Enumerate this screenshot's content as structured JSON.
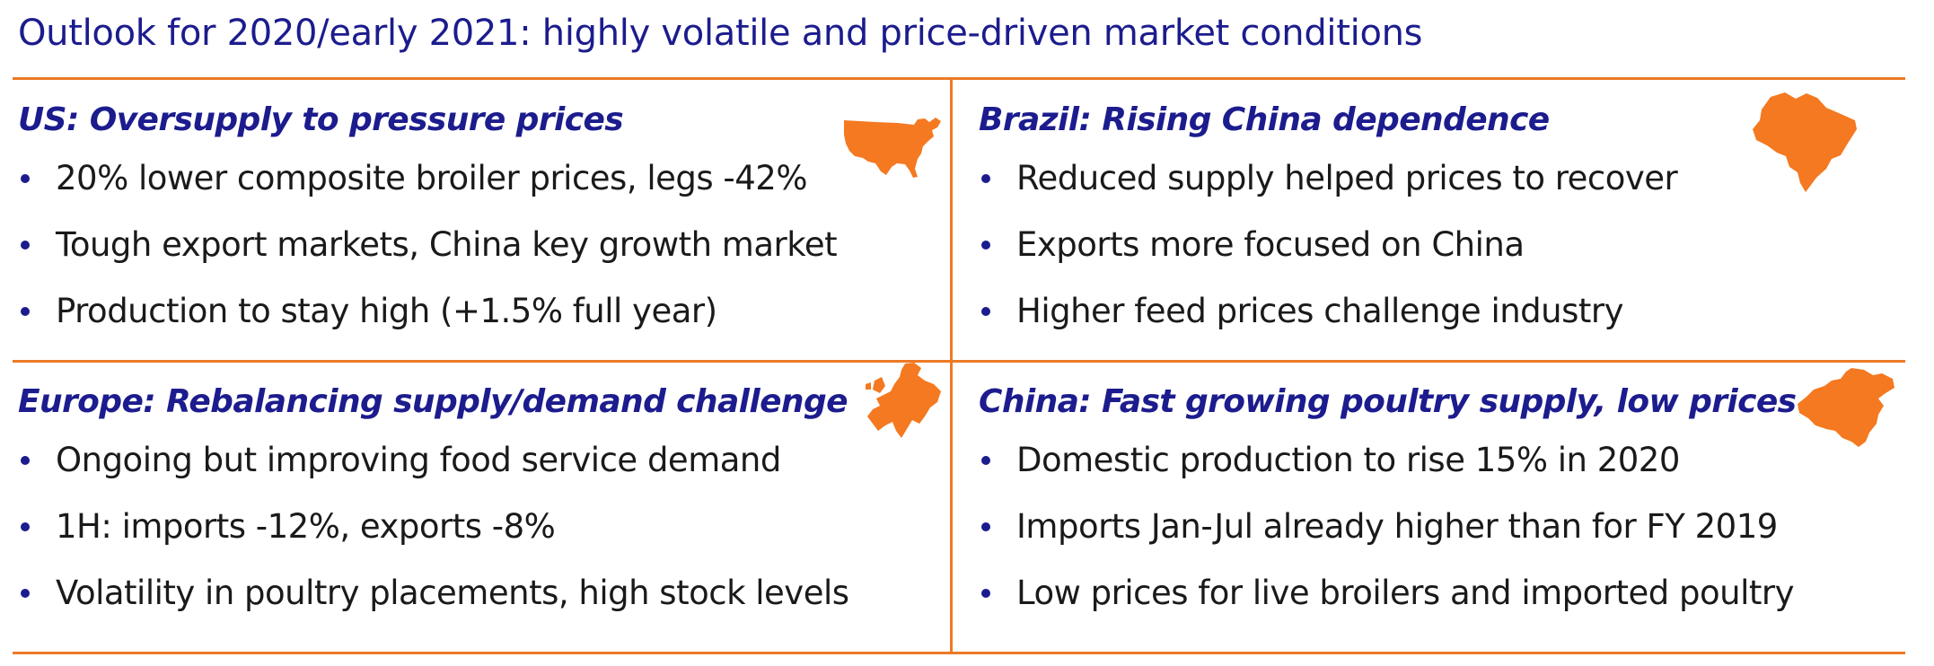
{
  "title": "Outlook for 2020/early 2021: highly volatile and price-driven market conditions",
  "colors": {
    "title": "#1c1c8e",
    "accent": "#ec7a26",
    "bullet_dot": "#1c1c8e",
    "map_fill": "#f47920"
  },
  "quadrants": {
    "us": {
      "heading": "US: Oversupply to pressure prices",
      "map_icon": "us-map-icon",
      "bullets": [
        "20% lower composite broiler prices, legs -42%",
        "Tough export markets, China key growth market",
        "Production to stay high (+1.5% full year)"
      ]
    },
    "brazil": {
      "heading": "Brazil: Rising China dependence",
      "map_icon": "brazil-map-icon",
      "bullets": [
        "Reduced supply helped prices to recover",
        "Exports more focused on China",
        "Higher feed prices challenge industry"
      ]
    },
    "europe": {
      "heading": "Europe: Rebalancing supply/demand challenge",
      "map_icon": "europe-map-icon",
      "bullets": [
        "Ongoing but improving food service demand",
        "1H: imports -12%, exports -8%",
        "Volatility in poultry placements, high stock levels"
      ]
    },
    "china": {
      "heading": "China: Fast growing poultry supply, low prices",
      "map_icon": "china-map-icon",
      "bullets": [
        "Domestic production to rise 15% in 2020",
        "Imports Jan-Jul already higher than for FY 2019",
        "Low prices for live broilers and imported poultry"
      ]
    }
  }
}
